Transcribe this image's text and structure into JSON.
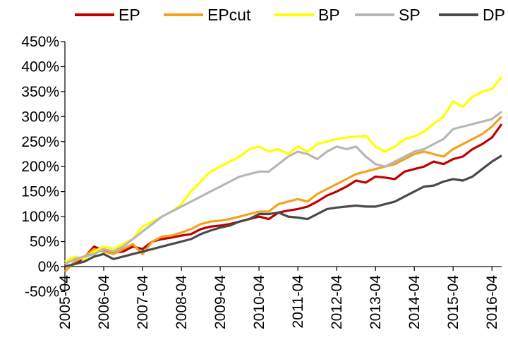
{
  "chart_data": {
    "type": "line",
    "title": "",
    "xlabel": "",
    "ylabel": "",
    "ylim": [
      -50,
      450
    ],
    "yticks": [
      -50,
      0,
      50,
      100,
      150,
      200,
      250,
      300,
      350,
      400,
      450
    ],
    "ytick_labels": [
      "-50%",
      "0%",
      "50%",
      "100%",
      "150%",
      "200%",
      "250%",
      "300%",
      "350%",
      "400%",
      "450%"
    ],
    "xtick_labels": [
      "2005-04",
      "2006-04",
      "2007-04",
      "2008-04",
      "2009-04",
      "2010-04",
      "2011-04",
      "2012-04",
      "2013-04",
      "2014-04",
      "2015-04",
      "2016-04"
    ],
    "x_start": "2005-04",
    "x_end": "2016-07",
    "grid": false,
    "legend_position": "top",
    "series": [
      {
        "name": "EP",
        "color": "#C00000",
        "x": [
          "2005-04",
          "2005-07",
          "2005-10",
          "2006-01",
          "2006-04",
          "2006-07",
          "2006-10",
          "2007-01",
          "2007-04",
          "2007-07",
          "2007-10",
          "2008-01",
          "2008-04",
          "2008-07",
          "2008-10",
          "2009-01",
          "2009-04",
          "2009-07",
          "2009-10",
          "2010-01",
          "2010-04",
          "2010-07",
          "2010-10",
          "2011-01",
          "2011-04",
          "2011-07",
          "2011-10",
          "2012-01",
          "2012-04",
          "2012-07",
          "2012-10",
          "2013-01",
          "2013-04",
          "2013-07",
          "2013-10",
          "2014-01",
          "2014-04",
          "2014-07",
          "2014-10",
          "2015-01",
          "2015-04",
          "2015-07",
          "2015-10",
          "2016-01",
          "2016-04",
          "2016-07"
        ],
        "values": [
          0,
          5,
          18,
          40,
          32,
          28,
          30,
          40,
          35,
          50,
          55,
          58,
          62,
          65,
          75,
          80,
          82,
          85,
          90,
          95,
          100,
          95,
          108,
          112,
          115,
          120,
          130,
          142,
          150,
          160,
          172,
          168,
          180,
          178,
          175,
          190,
          195,
          200,
          210,
          205,
          215,
          220,
          235,
          245,
          258,
          285
        ]
      },
      {
        "name": "EPcut",
        "color": "#F4A21C",
        "x": [
          "2005-04",
          "2005-07",
          "2005-10",
          "2006-01",
          "2006-04",
          "2006-07",
          "2006-10",
          "2007-01",
          "2007-04",
          "2007-07",
          "2007-10",
          "2008-01",
          "2008-04",
          "2008-07",
          "2008-10",
          "2009-01",
          "2009-04",
          "2009-07",
          "2009-10",
          "2010-01",
          "2010-04",
          "2010-07",
          "2010-10",
          "2011-01",
          "2011-04",
          "2011-07",
          "2011-10",
          "2012-01",
          "2012-04",
          "2012-07",
          "2012-10",
          "2013-01",
          "2013-04",
          "2013-07",
          "2013-10",
          "2014-01",
          "2014-04",
          "2014-07",
          "2014-10",
          "2015-01",
          "2015-04",
          "2015-07",
          "2015-10",
          "2016-01",
          "2016-04",
          "2016-07"
        ],
        "values": [
          -10,
          10,
          20,
          35,
          30,
          25,
          35,
          45,
          25,
          50,
          60,
          62,
          68,
          75,
          85,
          90,
          92,
          95,
          100,
          105,
          110,
          110,
          125,
          130,
          135,
          130,
          145,
          155,
          165,
          175,
          185,
          190,
          195,
          200,
          205,
          215,
          225,
          230,
          225,
          220,
          235,
          245,
          255,
          265,
          280,
          300
        ]
      },
      {
        "name": "BP",
        "color": "#FFFF00",
        "x": [
          "2005-04",
          "2005-07",
          "2005-10",
          "2006-01",
          "2006-04",
          "2006-07",
          "2006-10",
          "2007-01",
          "2007-04",
          "2007-07",
          "2007-10",
          "2008-01",
          "2008-04",
          "2008-07",
          "2008-10",
          "2009-01",
          "2009-04",
          "2009-07",
          "2009-10",
          "2010-01",
          "2010-04",
          "2010-07",
          "2010-10",
          "2011-01",
          "2011-04",
          "2011-07",
          "2011-10",
          "2012-01",
          "2012-04",
          "2012-07",
          "2012-10",
          "2013-01",
          "2013-04",
          "2013-07",
          "2013-10",
          "2014-01",
          "2014-04",
          "2014-07",
          "2014-10",
          "2015-01",
          "2015-04",
          "2015-07",
          "2015-10",
          "2016-01",
          "2016-04",
          "2016-07"
        ],
        "values": [
          10,
          20,
          15,
          30,
          40,
          35,
          45,
          55,
          80,
          90,
          100,
          110,
          125,
          150,
          170,
          190,
          200,
          210,
          220,
          235,
          240,
          230,
          235,
          225,
          240,
          230,
          245,
          250,
          255,
          258,
          260,
          262,
          240,
          230,
          240,
          255,
          260,
          270,
          285,
          300,
          330,
          320,
          340,
          350,
          355,
          380
        ]
      },
      {
        "name": "SP",
        "color": "#B7B7B7",
        "x": [
          "2005-04",
          "2005-07",
          "2005-10",
          "2006-01",
          "2006-04",
          "2006-07",
          "2006-10",
          "2007-01",
          "2007-04",
          "2007-07",
          "2007-10",
          "2008-01",
          "2008-04",
          "2008-07",
          "2008-10",
          "2009-01",
          "2009-04",
          "2009-07",
          "2009-10",
          "2010-01",
          "2010-04",
          "2010-07",
          "2010-10",
          "2011-01",
          "2011-04",
          "2011-07",
          "2011-10",
          "2012-01",
          "2012-04",
          "2012-07",
          "2012-10",
          "2013-01",
          "2013-04",
          "2013-07",
          "2013-10",
          "2014-01",
          "2014-04",
          "2014-07",
          "2014-10",
          "2015-01",
          "2015-04",
          "2015-07",
          "2015-10",
          "2016-01",
          "2016-04",
          "2016-07"
        ],
        "values": [
          5,
          15,
          20,
          25,
          35,
          30,
          40,
          55,
          70,
          85,
          100,
          110,
          120,
          130,
          140,
          150,
          160,
          170,
          180,
          185,
          190,
          190,
          205,
          220,
          230,
          225,
          215,
          230,
          240,
          235,
          240,
          220,
          205,
          200,
          210,
          220,
          230,
          235,
          245,
          255,
          275,
          280,
          285,
          290,
          295,
          310
        ]
      },
      {
        "name": "DP",
        "color": "#4A4A4A",
        "x": [
          "2005-04",
          "2005-07",
          "2005-10",
          "2006-01",
          "2006-04",
          "2006-07",
          "2006-10",
          "2007-01",
          "2007-04",
          "2007-07",
          "2007-10",
          "2008-01",
          "2008-04",
          "2008-07",
          "2008-10",
          "2009-01",
          "2009-04",
          "2009-07",
          "2009-10",
          "2010-01",
          "2010-04",
          "2010-07",
          "2010-10",
          "2011-01",
          "2011-04",
          "2011-07",
          "2011-10",
          "2012-01",
          "2012-04",
          "2012-07",
          "2012-10",
          "2013-01",
          "2013-04",
          "2013-07",
          "2013-10",
          "2014-01",
          "2014-04",
          "2014-07",
          "2014-10",
          "2015-01",
          "2015-04",
          "2015-07",
          "2015-10",
          "2016-01",
          "2016-04",
          "2016-07"
        ],
        "values": [
          0,
          5,
          10,
          20,
          25,
          15,
          20,
          25,
          30,
          35,
          40,
          45,
          50,
          55,
          65,
          72,
          78,
          82,
          90,
          95,
          105,
          105,
          108,
          100,
          98,
          95,
          105,
          115,
          118,
          120,
          122,
          120,
          120,
          125,
          130,
          140,
          150,
          160,
          162,
          170,
          175,
          172,
          180,
          195,
          210,
          222
        ]
      }
    ]
  }
}
